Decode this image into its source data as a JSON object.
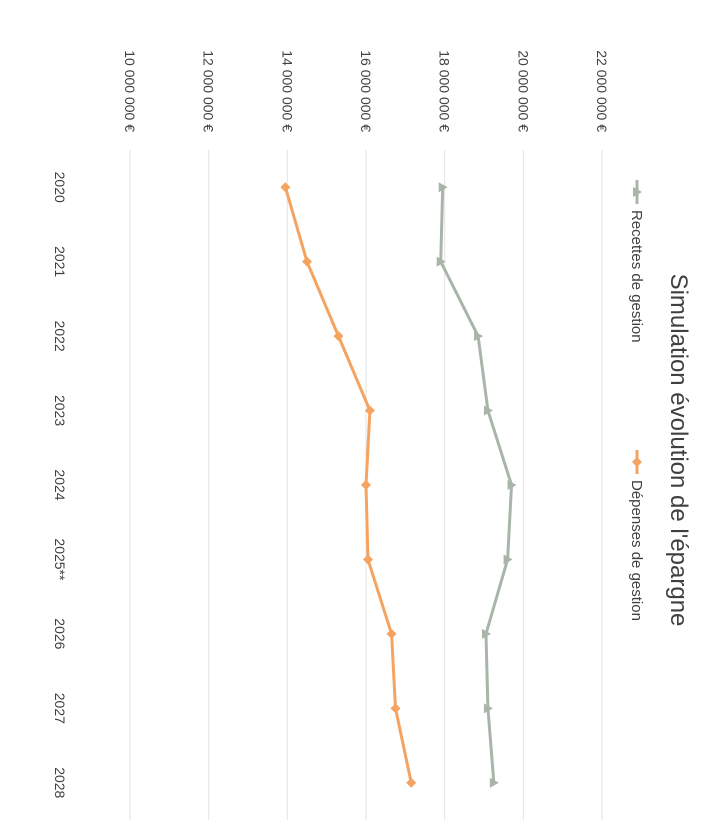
{
  "chart_data": {
    "type": "line",
    "title": "Simulation évolution de l'épargne",
    "categories": [
      "2020",
      "2021",
      "2022",
      "2023",
      "2024",
      "2025**",
      "2026",
      "2027",
      "2028"
    ],
    "series": [
      {
        "name": "Recettes de gestion",
        "color": "#a8b5a8",
        "marker": "triangle",
        "values": [
          17950000,
          17900000,
          18850000,
          19100000,
          19700000,
          19600000,
          19050000,
          19100000,
          19250000
        ]
      },
      {
        "name": "Dépenses de gestion",
        "color": "#f4a460",
        "marker": "diamond",
        "values": [
          13950000,
          14500000,
          15300000,
          16100000,
          16000000,
          16050000,
          16650000,
          16750000,
          17150000
        ]
      }
    ],
    "y_ticks": [
      "10 000 000 €",
      "12 000 000 €",
      "14 000 000 €",
      "16 000 000 €",
      "18 000 000 €",
      "20 000 000 €",
      "22 000 000 €"
    ],
    "ylim": [
      10000000,
      22000000
    ],
    "grid": true,
    "legend_position": "top",
    "orientation": "rotated 90° clockwise"
  }
}
